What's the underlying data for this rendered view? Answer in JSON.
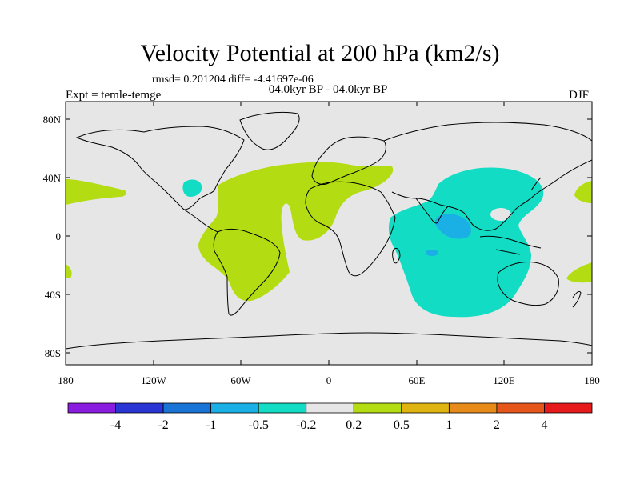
{
  "title": "Velocity Potential at 200 hPa (km2/s)",
  "stats": "rmsd= 0.201204 diff= -4.41697e-06",
  "experiment": "Expt = temle-temge",
  "period": "04.0kyr BP - 04.0kyr BP",
  "season": "DJF",
  "lat_labels": [
    "80N",
    "40N",
    "0",
    "40S",
    "80S"
  ],
  "lon_labels": [
    "180",
    "120W",
    "60W",
    "0",
    "60E",
    "120E",
    "180"
  ],
  "colorbar": {
    "labels": [
      "-4",
      "-2",
      "-1",
      "-0.5",
      "-0.2",
      "0.2",
      "0.5",
      "1",
      "2",
      "4"
    ],
    "colors": [
      "#8a1ce0",
      "#2a35d6",
      "#1a74d6",
      "#1ab0e6",
      "#12dcc4",
      "#e6e6e6",
      "#b4dc12",
      "#e0b410",
      "#e68a1a",
      "#e6561a",
      "#e61a1a"
    ]
  },
  "colors": {
    "land_background": "#e6e6e6",
    "positive_fill": "#b4dc12",
    "negative_fill": "#12dcc4",
    "strong_negative_fill": "#1ab0e6"
  }
}
